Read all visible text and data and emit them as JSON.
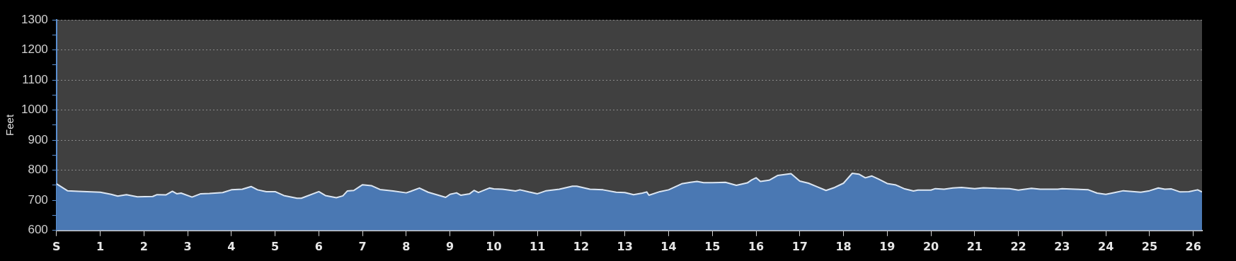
{
  "chart_data": {
    "type": "area",
    "ylabel": "Feet",
    "xlim": [
      0,
      26.2
    ],
    "ylim": [
      600,
      1300
    ],
    "xticks": [
      {
        "value": 0,
        "label": "S"
      },
      1,
      2,
      3,
      4,
      5,
      6,
      7,
      8,
      9,
      10,
      11,
      12,
      13,
      14,
      15,
      16,
      17,
      18,
      19,
      20,
      21,
      22,
      23,
      24,
      25,
      26
    ],
    "yticks": [
      600,
      {
        "value": 650,
        "label": null
      },
      700,
      {
        "value": 750,
        "label": null
      },
      800,
      {
        "value": 850,
        "label": null
      },
      900,
      {
        "value": 950,
        "label": null
      },
      1000,
      {
        "value": 1050,
        "label": null
      },
      1100,
      {
        "value": 1150,
        "label": null
      },
      1200,
      {
        "value": 1250,
        "label": null
      },
      1300
    ],
    "grid": "y",
    "legend": false,
    "marker": "none",
    "line_style": "solid",
    "series": [
      {
        "color": "#4a78b3",
        "x": [
          0,
          0.25,
          0.5,
          1.0,
          1.25,
          1.4,
          1.6,
          1.85,
          2.2,
          2.3,
          2.5,
          2.65,
          2.75,
          2.85,
          3.1,
          3.3,
          3.5,
          3.8,
          4.0,
          4.25,
          4.45,
          4.6,
          4.8,
          5.0,
          5.2,
          5.5,
          5.6,
          6.0,
          6.15,
          6.4,
          6.55,
          6.65,
          6.8,
          7.0,
          7.2,
          7.4,
          7.7,
          8.0,
          8.1,
          8.3,
          8.5,
          8.9,
          9.0,
          9.15,
          9.25,
          9.45,
          9.55,
          9.65,
          9.9,
          10.0,
          10.2,
          10.5,
          10.6,
          10.8,
          11.0,
          11.2,
          11.5,
          11.8,
          11.9,
          12.2,
          12.5,
          12.8,
          13.0,
          13.2,
          13.4,
          13.5,
          13.55,
          13.8,
          14.0,
          14.3,
          14.5,
          14.65,
          14.8,
          15.0,
          15.3,
          15.55,
          15.8,
          15.9,
          16.0,
          16.1,
          16.3,
          16.5,
          16.8,
          17.0,
          17.2,
          17.4,
          17.6,
          17.8,
          18.0,
          18.2,
          18.35,
          18.5,
          18.65,
          18.8,
          19.0,
          19.2,
          19.4,
          19.6,
          19.7,
          20.0,
          20.1,
          20.3,
          20.5,
          20.7,
          21.0,
          21.2,
          21.5,
          21.8,
          22.0,
          22.3,
          22.5,
          22.9,
          23.0,
          23.3,
          23.6,
          23.8,
          24.0,
          24.2,
          24.4,
          24.8,
          25.0,
          25.2,
          25.35,
          25.5,
          25.7,
          25.9,
          26.1,
          26.2
        ],
        "values": [
          755,
          732,
          730,
          727,
          720,
          714,
          719,
          712,
          713,
          719,
          718,
          730,
          722,
          724,
          711,
          722,
          723,
          726,
          735,
          737,
          746,
          735,
          729,
          729,
          716,
          707,
          707,
          729,
          716,
          709,
          715,
          731,
          733,
          752,
          749,
          736,
          731,
          725,
          730,
          741,
          727,
          710,
          720,
          725,
          717,
          722,
          733,
          726,
          741,
          738,
          737,
          731,
          735,
          728,
          722,
          732,
          737,
          747,
          747,
          737,
          735,
          727,
          726,
          719,
          724,
          728,
          717,
          729,
          735,
          755,
          760,
          763,
          759,
          759,
          760,
          750,
          758,
          768,
          775,
          763,
          767,
          783,
          789,
          764,
          757,
          745,
          733,
          743,
          757,
          790,
          787,
          775,
          781,
          771,
          756,
          751,
          738,
          731,
          734,
          734,
          739,
          737,
          741,
          743,
          739,
          742,
          740,
          739,
          734,
          740,
          737,
          737,
          739,
          737,
          735,
          724,
          720,
          726,
          732,
          727,
          732,
          741,
          737,
          738,
          728,
          729,
          735,
          728
        ]
      }
    ]
  }
}
